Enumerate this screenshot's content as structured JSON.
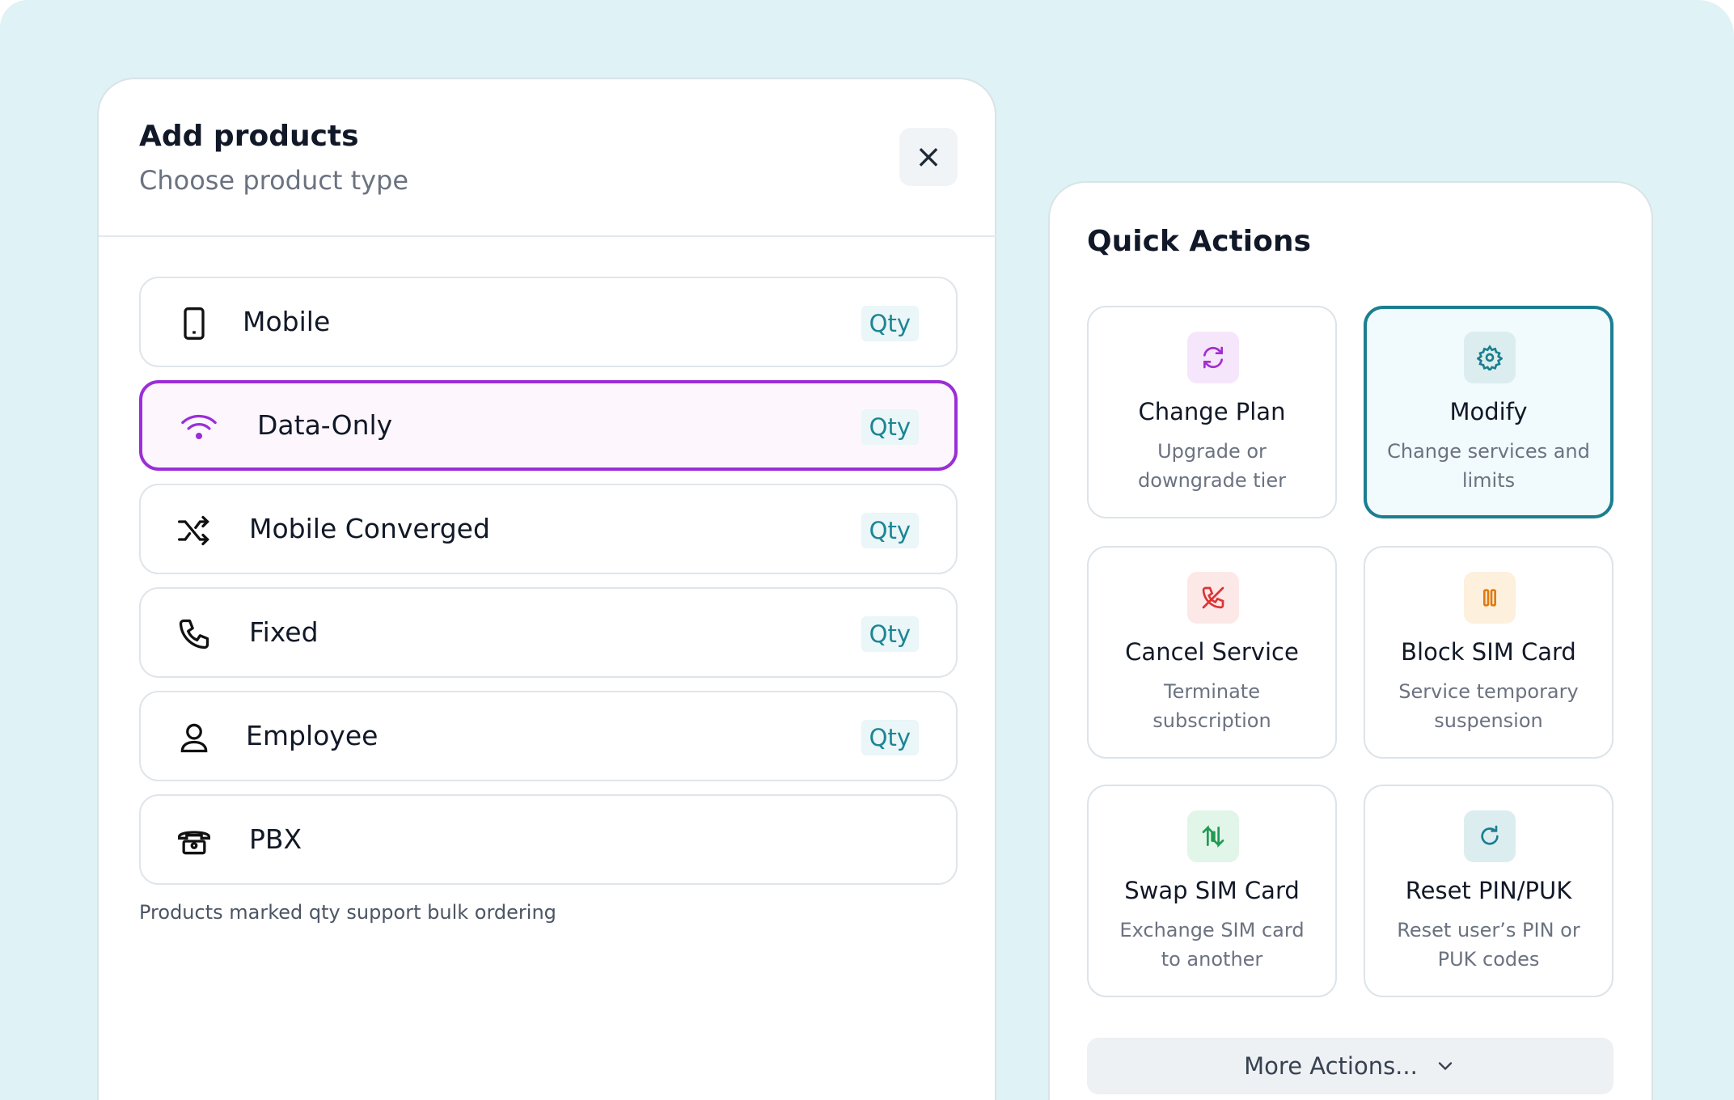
{
  "add_products": {
    "title": "Add products",
    "subtitle": "Choose product type",
    "close": "×",
    "products": [
      {
        "label": "Mobile",
        "badge": "Qty"
      },
      {
        "label": "Data-Only",
        "badge": "Qty"
      },
      {
        "label": "Mobile Converged",
        "badge": "Qty"
      },
      {
        "label": "Fixed",
        "badge": "Qty"
      },
      {
        "label": "Employee",
        "badge": "Qty"
      },
      {
        "label": "PBX"
      }
    ],
    "footnote": "Products marked qty support bulk ordering"
  },
  "quick_actions": {
    "title": "Quick Actions",
    "actions": [
      {
        "title": "Change Plan",
        "description": "Upgrade or downgrade tier"
      },
      {
        "title": "Modify",
        "description": "Change services and limits"
      },
      {
        "title": "Cancel Service",
        "description": "Terminate subscription"
      },
      {
        "title": "Block SIM Card",
        "description": "Service temporary suspension"
      },
      {
        "title": "Swap SIM Card",
        "description": "Exchange SIM card to another"
      },
      {
        "title": "Reset PIN/PUK",
        "description": "Reset user’s PIN or PUK codes"
      }
    ],
    "more": "More Actions..."
  }
}
